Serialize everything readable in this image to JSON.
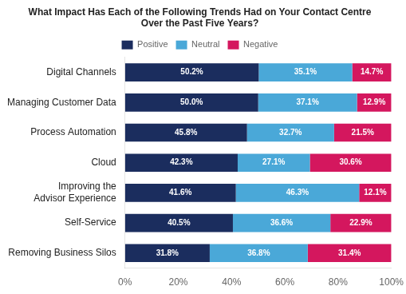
{
  "chart_data": {
    "type": "bar",
    "orientation": "horizontal",
    "stacked": true,
    "title": "What Impact Has Each of the Following Trends Had on Your Contact Centre\nOver the Past Five Years?",
    "categories": [
      "Digital Channels",
      "Managing Customer Data",
      "Process Automation",
      "Cloud",
      "Improving the\nAdvisor Experience",
      "Self-Service",
      "Removing Business Silos"
    ],
    "series": [
      {
        "name": "Positive",
        "color": "#1b2d5e",
        "values": [
          50.2,
          50.0,
          45.8,
          42.3,
          41.6,
          40.5,
          31.8
        ],
        "value_labels": [
          "50.2%",
          "50.0%",
          "45.8%",
          "42.3%",
          "41.6%",
          "40.5%",
          "31.8%"
        ]
      },
      {
        "name": "Neutral",
        "color": "#4aa8d8",
        "values": [
          35.1,
          37.1,
          32.7,
          27.1,
          46.3,
          36.6,
          36.8
        ],
        "value_labels": [
          "35.1%",
          "37.1%",
          "32.7%",
          "27.1%",
          "46.3%",
          "36.6%",
          "36.8%"
        ]
      },
      {
        "name": "Negative",
        "color": "#d4175e",
        "values": [
          14.7,
          12.9,
          21.5,
          30.6,
          12.1,
          22.9,
          31.4
        ],
        "value_labels": [
          "14.7%",
          "12.9%",
          "21.5%",
          "30.6%",
          "12.1%",
          "22.9%",
          "31.4%"
        ]
      }
    ],
    "xlim": [
      0,
      100
    ],
    "xticks": [
      {
        "value": 0,
        "label": "0%"
      },
      {
        "value": 20,
        "label": "20%"
      },
      {
        "value": 40,
        "label": "40%"
      },
      {
        "value": 60,
        "label": "60%"
      },
      {
        "value": 80,
        "label": "80%"
      },
      {
        "value": 100,
        "label": "100%"
      }
    ],
    "grid": false,
    "legend": "top",
    "data_labels": true
  }
}
